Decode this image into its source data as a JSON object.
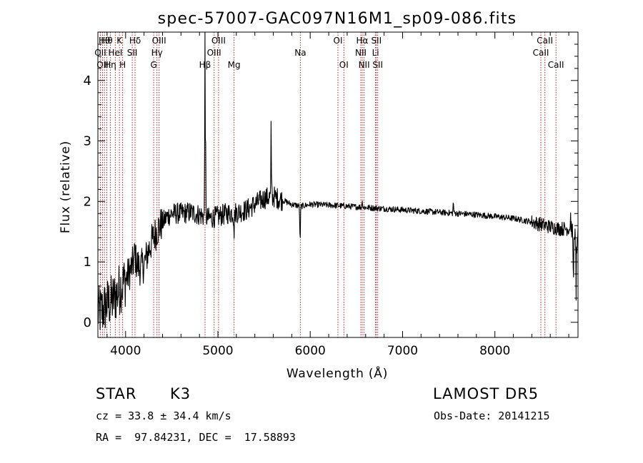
{
  "chart_data": {
    "type": "line",
    "title": "spec-57007-GAC097N16M1_sp09-086.fits",
    "xlabel": "Wavelength (Å)",
    "ylabel": "Flux (relative)",
    "xlim": [
      3700,
      8900
    ],
    "ylim": [
      -0.25,
      4.8
    ],
    "x_ticks": [
      4000,
      5000,
      6000,
      7000,
      8000
    ],
    "x_tick_labels": [
      "4000",
      "5000",
      "6000",
      "7000",
      "8000"
    ],
    "y_ticks": [
      0,
      1,
      2,
      3,
      4
    ],
    "y_tick_labels": [
      "0",
      "1",
      "2",
      "3",
      "4"
    ],
    "grid": false,
    "spectrum_color": "#000000",
    "line_marker_color": "#b22222",
    "spectrum_anchors": [
      [
        3700,
        0.15
      ],
      [
        3750,
        0.2
      ],
      [
        3800,
        0.3
      ],
      [
        3850,
        0.35
      ],
      [
        3900,
        0.45
      ],
      [
        3950,
        0.6
      ],
      [
        4000,
        0.7
      ],
      [
        4050,
        0.85
      ],
      [
        4100,
        1.05
      ],
      [
        4150,
        0.9
      ],
      [
        4200,
        0.95
      ],
      [
        4250,
        1.2
      ],
      [
        4300,
        1.4
      ],
      [
        4350,
        1.55
      ],
      [
        4400,
        1.65
      ],
      [
        4450,
        1.75
      ],
      [
        4500,
        1.8
      ],
      [
        4600,
        1.8
      ],
      [
        4700,
        1.82
      ],
      [
        4800,
        1.78
      ],
      [
        4900,
        1.72
      ],
      [
        5000,
        1.75
      ],
      [
        5100,
        1.8
      ],
      [
        5200,
        1.82
      ],
      [
        5300,
        1.85
      ],
      [
        5400,
        1.95
      ],
      [
        5500,
        2.05
      ],
      [
        5600,
        2.08
      ],
      [
        5700,
        2.02
      ],
      [
        5800,
        1.95
      ],
      [
        5900,
        1.92
      ],
      [
        6000,
        1.95
      ],
      [
        6200,
        1.94
      ],
      [
        6400,
        1.92
      ],
      [
        6600,
        1.9
      ],
      [
        6800,
        1.88
      ],
      [
        7000,
        1.86
      ],
      [
        7200,
        1.84
      ],
      [
        7400,
        1.82
      ],
      [
        7600,
        1.8
      ],
      [
        7800,
        1.78
      ],
      [
        8000,
        1.75
      ],
      [
        8200,
        1.72
      ],
      [
        8400,
        1.66
      ],
      [
        8600,
        1.58
      ],
      [
        8700,
        1.55
      ],
      [
        8800,
        1.55
      ],
      [
        8900,
        1.45
      ]
    ],
    "spectrum_features": [
      [
        4861,
        4.5
      ],
      [
        5577,
        1.1
      ],
      [
        5890,
        -0.5
      ],
      [
        5175,
        -0.35
      ],
      [
        6563,
        0.15
      ],
      [
        7550,
        0.15
      ],
      [
        8850,
        -0.7
      ],
      [
        8880,
        -1.2
      ],
      [
        8820,
        0.25
      ],
      [
        4101,
        0.2
      ]
    ],
    "line_markers": [
      {
        "wave": 3727,
        "label": "OII",
        "row": 2
      },
      {
        "wave": 3750,
        "label": "OII",
        "row": 3
      },
      {
        "wave": 3771,
        "label": "Hθ",
        "row": 1
      },
      {
        "wave": 3797,
        "label": "Hθ",
        "row": 1
      },
      {
        "wave": 3835,
        "label": "Hη",
        "row": 3
      },
      {
        "wave": 3889,
        "label": "HeI",
        "row": 2
      },
      {
        "wave": 3934,
        "label": "K",
        "row": 1
      },
      {
        "wave": 3968,
        "label": "H",
        "row": 3
      },
      {
        "wave": 4072,
        "label": "SII",
        "row": 2
      },
      {
        "wave": 4102,
        "label": "Hδ",
        "row": 1
      },
      {
        "wave": 4304,
        "label": "G",
        "row": 3
      },
      {
        "wave": 4340,
        "label": "Hγ",
        "row": 2
      },
      {
        "wave": 4363,
        "label": "OIII",
        "row": 1
      },
      {
        "wave": 4861,
        "label": "Hβ",
        "row": 3
      },
      {
        "wave": 4959,
        "label": "OIII",
        "row": 2
      },
      {
        "wave": 5007,
        "label": "OIII",
        "row": 1
      },
      {
        "wave": 5175,
        "label": "Mg",
        "row": 3
      },
      {
        "wave": 5893,
        "label": "Na",
        "row": 2
      },
      {
        "wave": 6300,
        "label": "OI",
        "row": 1
      },
      {
        "wave": 6364,
        "label": "OI",
        "row": 3
      },
      {
        "wave": 6548,
        "label": "NII",
        "row": 2
      },
      {
        "wave": 6563,
        "label": "Hα",
        "row": 1
      },
      {
        "wave": 6583,
        "label": "NII",
        "row": 3
      },
      {
        "wave": 6707,
        "label": "Li",
        "row": 2
      },
      {
        "wave": 6716,
        "label": "SII",
        "row": 1
      },
      {
        "wave": 6731,
        "label": "SII",
        "row": 3
      },
      {
        "wave": 8498,
        "label": "CaII",
        "row": 2
      },
      {
        "wave": 8542,
        "label": "CaII",
        "row": 1
      },
      {
        "wave": 8662,
        "label": "CaII",
        "row": 3
      }
    ]
  },
  "info": {
    "class": "STAR",
    "subclass": "K3",
    "survey": "LAMOST DR5",
    "cz": "cz = 33.8 ± 34.4 km/s",
    "obs_date": "Obs-Date: 20141215",
    "radec": "RA =  97.84231, DEC =  17.58893"
  }
}
